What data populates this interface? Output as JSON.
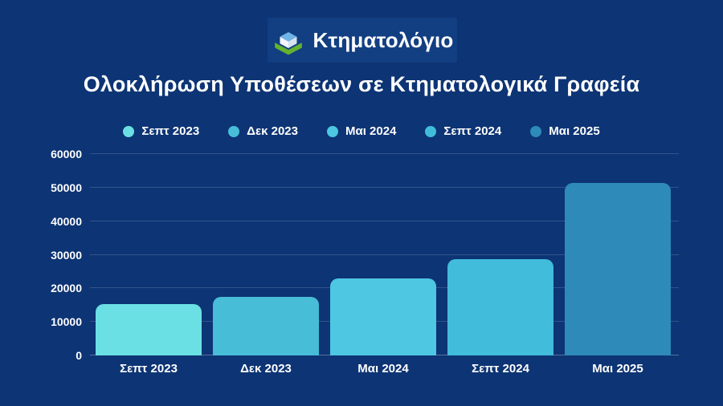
{
  "page": {
    "background_color": "#0d3474",
    "logo_plate_color": "#123e82"
  },
  "logo": {
    "text": "Κτηματολόγιο",
    "icon": "cube-logo-icon",
    "icon_colors": {
      "top": "#6fb3e8",
      "left": "#f2f6fa",
      "right": "#d7e3ef",
      "base": "#63b32e"
    }
  },
  "title": "Ολοκλήρωση Υποθέσεων σε Κτηματολογικά Γραφεία",
  "legend": {
    "items": [
      {
        "label": "Σεπτ 2023",
        "color": "#6ae0e4"
      },
      {
        "label": "Δεκ 2023",
        "color": "#48bdd8"
      },
      {
        "label": "Μαι 2024",
        "color": "#4dc7e2"
      },
      {
        "label": "Σεπτ 2024",
        "color": "#41bcdb"
      },
      {
        "label": "Μαι 2025",
        "color": "#2e8ab8"
      }
    ]
  },
  "chart_data": {
    "type": "bar",
    "title": "Ολοκλήρωση Υποθέσεων σε Κτηματολογικά Γραφεία",
    "categories": [
      "Σεπτ 2023",
      "Δεκ 2023",
      "Μαι 2024",
      "Σεπτ 2024",
      "Μαι 2025"
    ],
    "values": [
      15400,
      17500,
      23000,
      28600,
      51500
    ],
    "bar_colors": [
      "#6ae0e4",
      "#48bdd8",
      "#4dc7e2",
      "#41bcdb",
      "#2e8ab8"
    ],
    "xlabel": "",
    "ylabel": "",
    "ylim": [
      0,
      60000
    ],
    "yticks": [
      0,
      10000,
      20000,
      30000,
      40000,
      50000,
      60000
    ],
    "grid": true,
    "legend_position": "top",
    "legend_entries": [
      "Σεπτ 2023",
      "Δεκ 2023",
      "Μαι 2024",
      "Σεπτ 2024",
      "Μαι 2025"
    ]
  }
}
